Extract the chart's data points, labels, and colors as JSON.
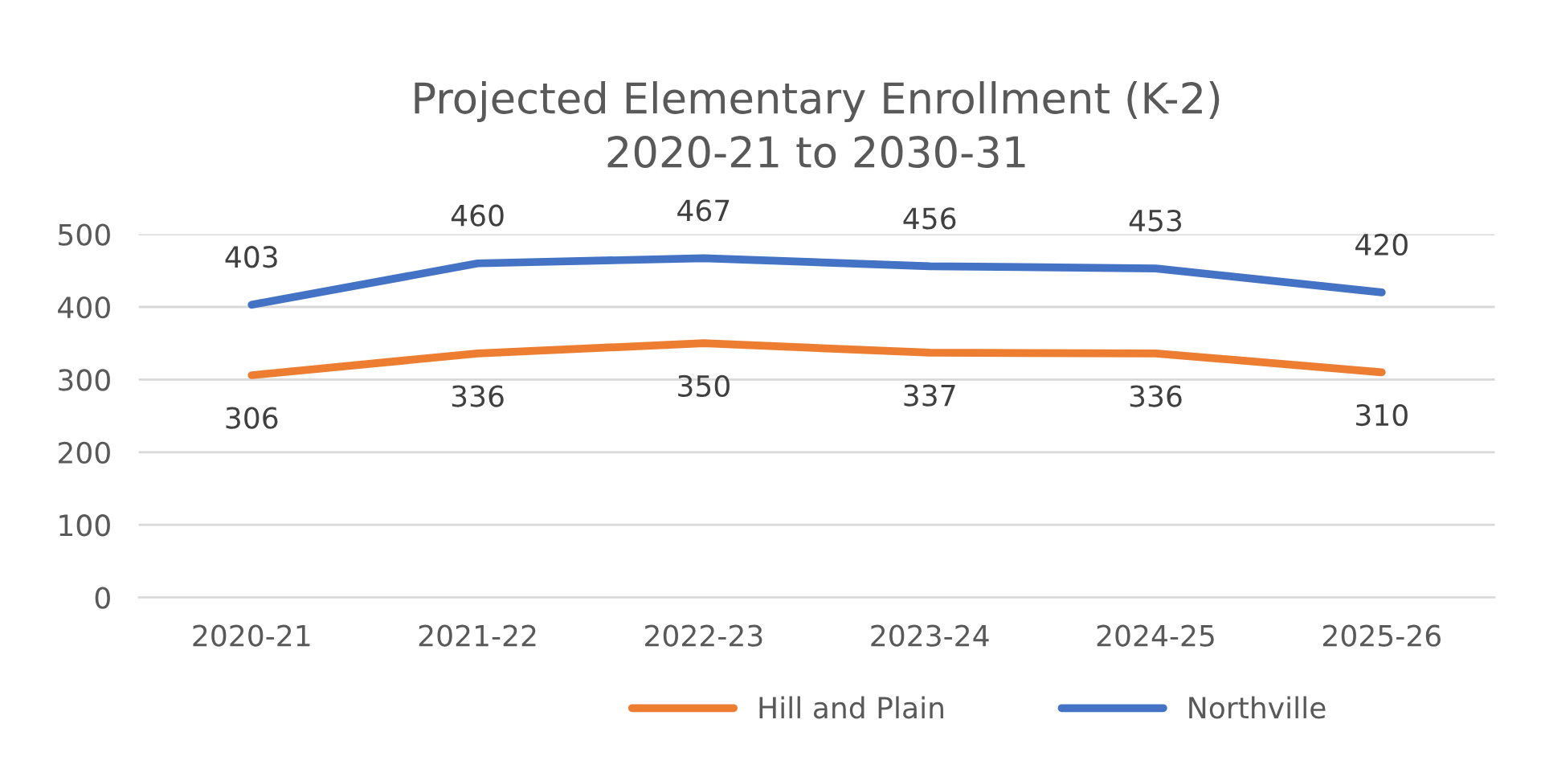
{
  "chart_data": {
    "type": "line",
    "title": "Projected Elementary Enrollment (K-2)\n2020-21 to 2030-31",
    "categories": [
      "2020-21",
      "2021-22",
      "2022-23",
      "2023-24",
      "2024-25",
      "2025-26"
    ],
    "series": [
      {
        "name": "Hill and Plain",
        "color": "#ed7d31",
        "values": [
          306,
          336,
          350,
          337,
          336,
          310
        ]
      },
      {
        "name": "Northville",
        "color": "#4472c4",
        "values": [
          403,
          460,
          467,
          456,
          453,
          420
        ]
      }
    ],
    "ylim": [
      0,
      500
    ],
    "yticks": [
      0,
      100,
      200,
      300,
      400,
      500
    ],
    "grid": "y",
    "legend": "bottom",
    "data_labels": true,
    "marker": "none",
    "line_style": "solid"
  }
}
